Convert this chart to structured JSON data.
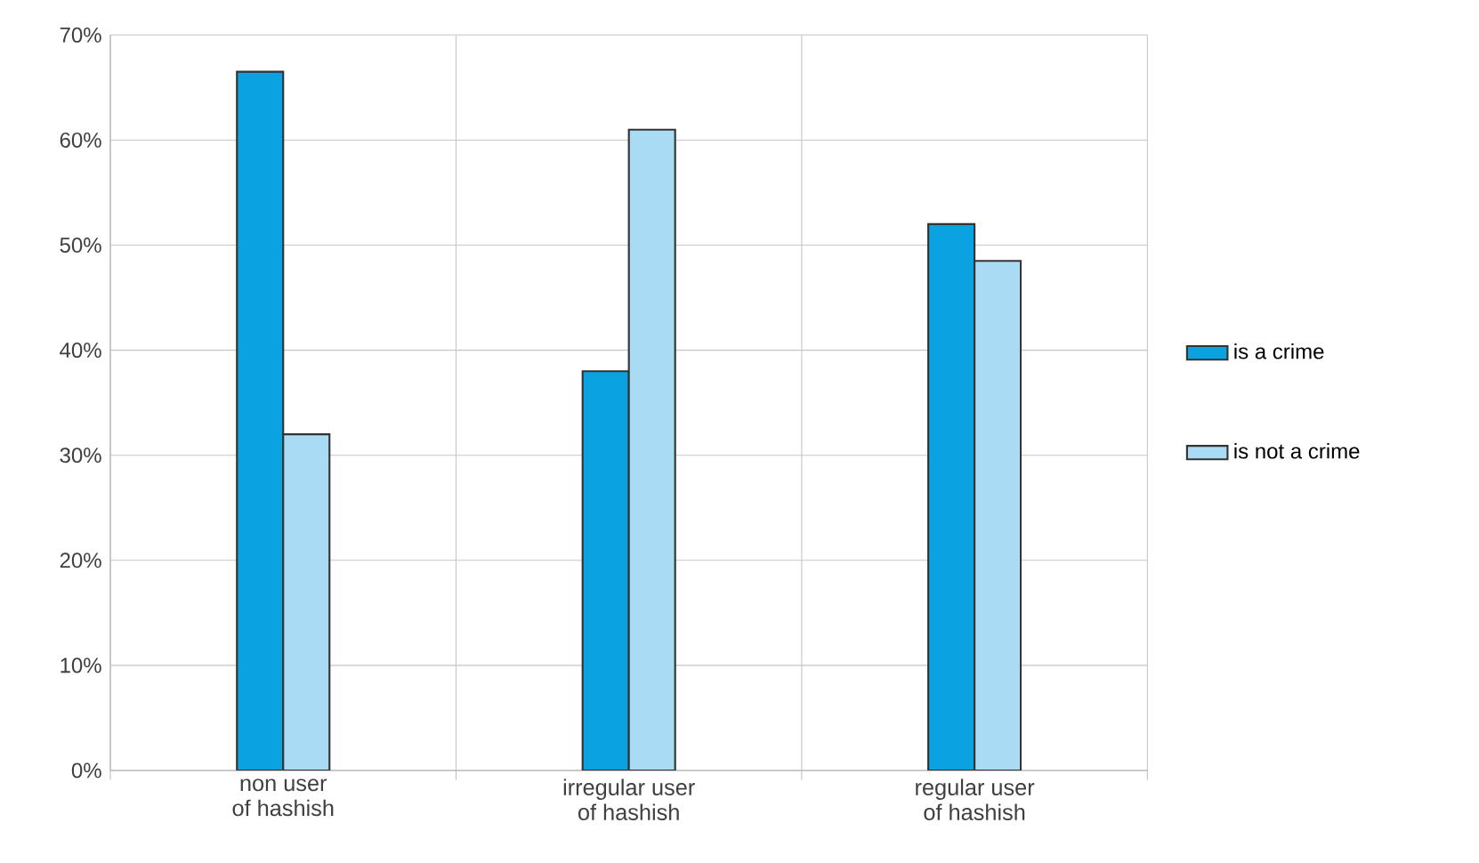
{
  "chart_data": {
    "type": "bar",
    "categories": [
      "non user\nof hashish",
      "irregular user\nof hashish",
      "regular user\nof hashish"
    ],
    "series": [
      {
        "name": "is a crime",
        "color": "#0aa2e0",
        "values": [
          66.5,
          38,
          52
        ]
      },
      {
        "name": "is not a crime",
        "color": "#a9dcf4",
        "values": [
          32,
          61,
          48.5
        ]
      }
    ],
    "ylim": [
      0,
      70
    ],
    "yticks": [
      {
        "value": 0,
        "label": "0%"
      },
      {
        "value": 10,
        "label": "10%"
      },
      {
        "value": 20,
        "label": "20%"
      },
      {
        "value": 30,
        "label": "30%"
      },
      {
        "value": 40,
        "label": "40%"
      },
      {
        "value": 50,
        "label": "50%"
      },
      {
        "value": 60,
        "label": "60%"
      },
      {
        "value": 70,
        "label": "70%"
      }
    ],
    "grid": true,
    "legend": "right"
  }
}
